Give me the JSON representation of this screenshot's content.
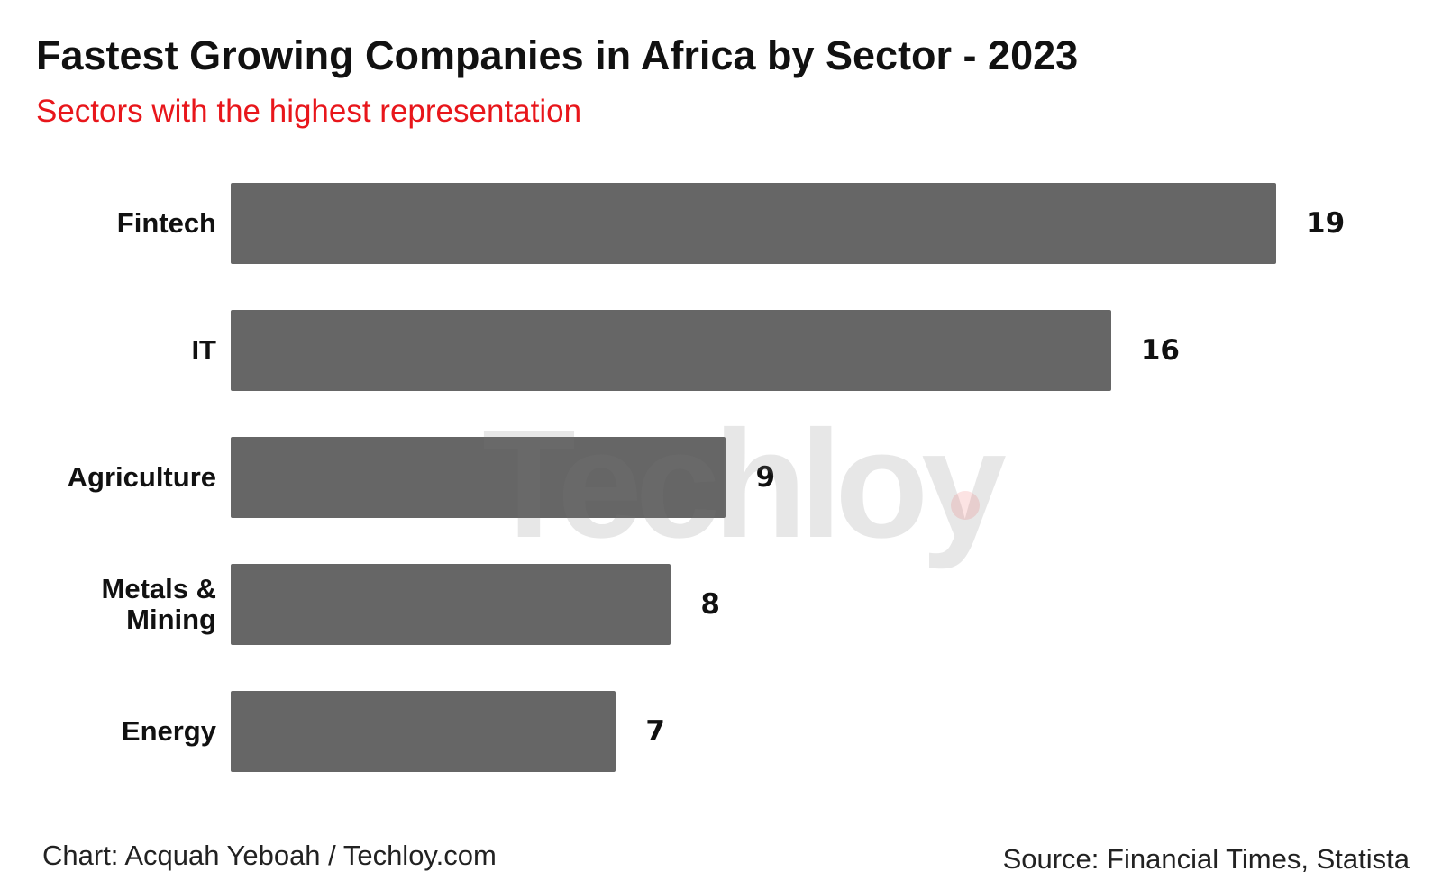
{
  "chart_data": {
    "type": "bar",
    "orientation": "horizontal",
    "title": "Fastest Growing Companies in Africa by Sector - 2023",
    "subtitle": "Sectors with the highest representation",
    "categories": [
      "Fintech",
      "IT",
      "Agriculture",
      "Metals & Mining",
      "Energy"
    ],
    "values": [
      19,
      16,
      9,
      8,
      7
    ],
    "color": "#666666",
    "watermark": "Techloy",
    "credit": "Chart: Acquah Yeboah / Techloy.com",
    "source": "Source: Financial Times, Statista"
  }
}
